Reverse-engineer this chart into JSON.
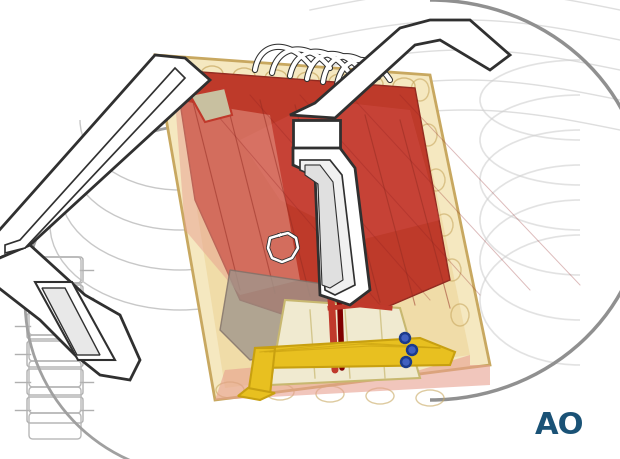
{
  "bg_color": "#ffffff",
  "ao_text": "AO",
  "ao_color": "#1a5276",
  "ao_fontsize": 22,
  "figure_width": 6.2,
  "figure_height": 4.59,
  "dpi": 100,
  "wound_color": "#f0e0b8",
  "fat_border_color": "#d4b870",
  "muscle_color": "#c0392b",
  "muscle_light": "#e8a090",
  "bone_color": "#f0ead0",
  "gray_color": "#a09080",
  "vessel_red": "#c0392b",
  "vessel_blue": "#2c3e8c",
  "yellow_tape": "#e8c020",
  "white_instrument": "#ffffff",
  "dark_outline": "#303030",
  "gray_outline": "#808080",
  "skin_outline": "#b0a080"
}
